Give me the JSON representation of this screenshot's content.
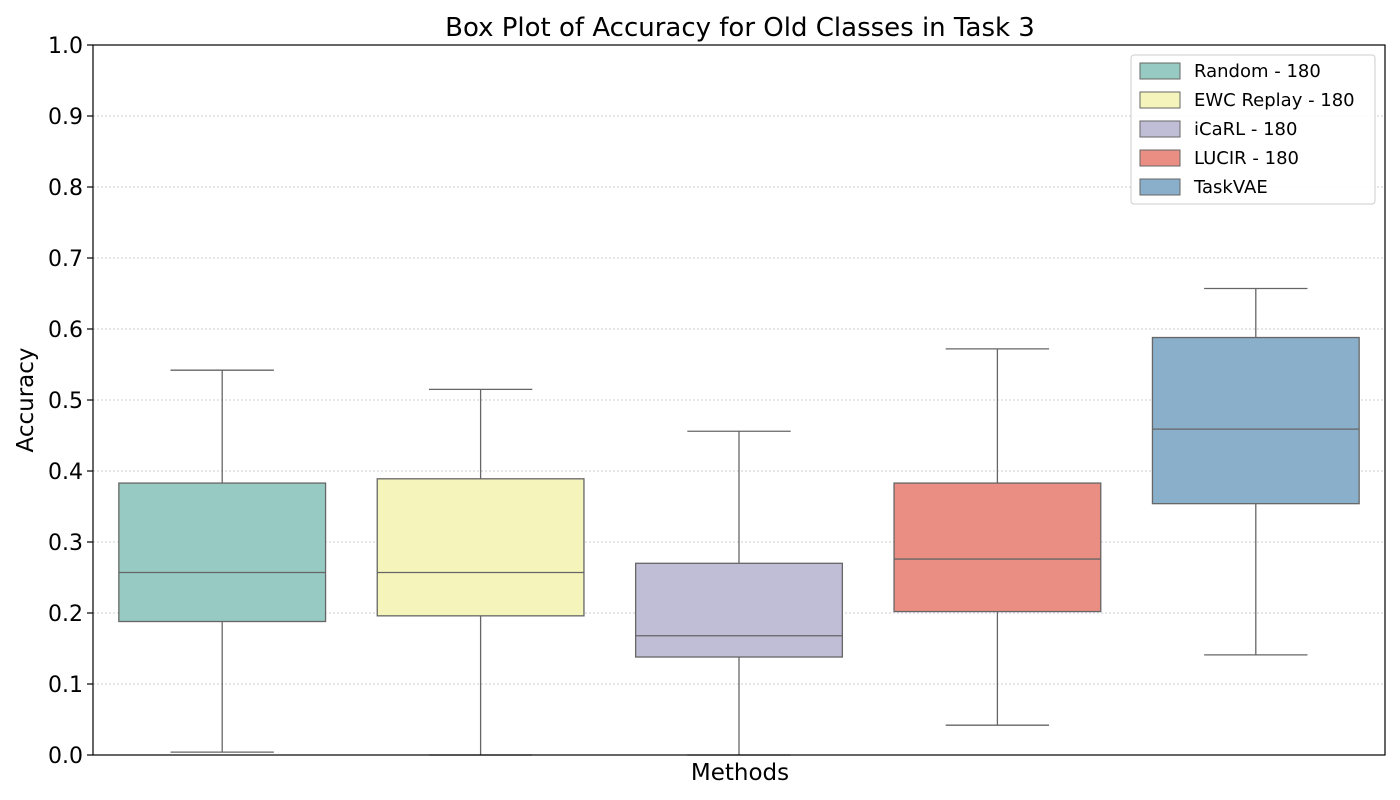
{
  "chart_data": {
    "type": "box",
    "title": "Box Plot of Accuracy for Old Classes in Task 3",
    "xlabel": "Methods",
    "ylabel": "Accuracy",
    "ylim": [
      0.0,
      1.0
    ],
    "yticks": [
      "0.0",
      "0.1",
      "0.2",
      "0.3",
      "0.4",
      "0.5",
      "0.6",
      "0.7",
      "0.8",
      "0.9",
      "1.0"
    ],
    "grid": "horizontal dotted",
    "legend_position": "top-right",
    "series": [
      {
        "name": "Random - 180",
        "color": "#97cac2",
        "whisker_low": 0.004,
        "q1": 0.188,
        "median": 0.257,
        "q3": 0.383,
        "whisker_high": 0.542
      },
      {
        "name": "EWC Replay - 180",
        "color": "#f5f5bb",
        "whisker_low": 0.0,
        "q1": 0.196,
        "median": 0.257,
        "q3": 0.389,
        "whisker_high": 0.515
      },
      {
        "name": "iCaRL - 180",
        "color": "#c0bdd6",
        "whisker_low": 0.0,
        "q1": 0.138,
        "median": 0.168,
        "q3": 0.27,
        "whisker_high": 0.456
      },
      {
        "name": "LUCIR - 180",
        "color": "#ea8d82",
        "whisker_low": 0.042,
        "q1": 0.202,
        "median": 0.276,
        "q3": 0.383,
        "whisker_high": 0.572
      },
      {
        "name": "TaskVAE",
        "color": "#8aafca",
        "whisker_low": 0.141,
        "q1": 0.354,
        "median": 0.459,
        "q3": 0.588,
        "whisker_high": 0.657
      }
    ]
  }
}
